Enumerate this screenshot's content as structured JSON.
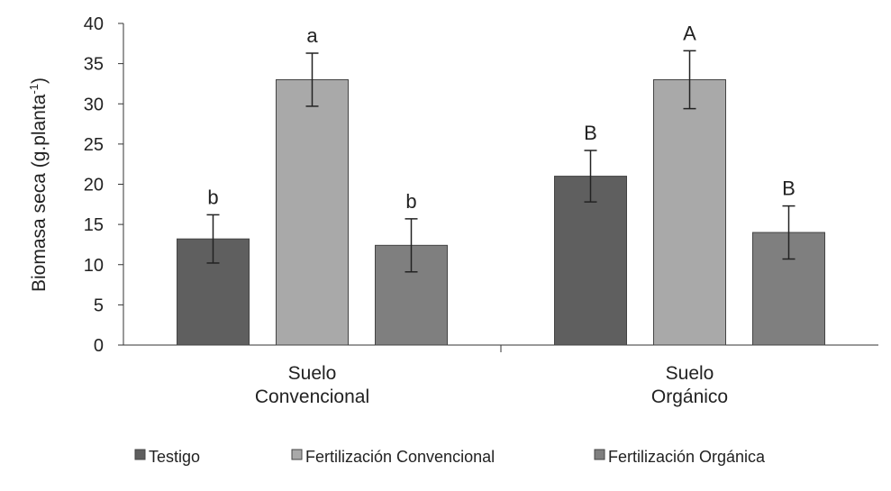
{
  "chart_data": {
    "type": "bar",
    "y_label": [
      "Biomasa seca (g.planta",
      "-1",
      ")"
    ],
    "categories": [
      "Suelo\nConvencional",
      "Suelo\nOrgánico"
    ],
    "series": [
      {
        "name": "Testigo",
        "color": "#5f5f5f",
        "values": [
          13.2,
          21
        ],
        "errors": [
          3.0,
          3.2
        ],
        "labels": [
          "b",
          "B"
        ]
      },
      {
        "name": "Fertilización Convencional",
        "color": "#a9a9a9",
        "values": [
          33,
          33
        ],
        "errors": [
          3.3,
          3.6
        ],
        "labels": [
          "a",
          "A"
        ]
      },
      {
        "name": "Fertilización Orgánica",
        "color": "#7f7f7f",
        "values": [
          12.4,
          14
        ],
        "errors": [
          3.3,
          3.3
        ],
        "labels": [
          "b",
          "B"
        ]
      }
    ],
    "ylim": [
      0,
      40
    ],
    "yticks": [
      0,
      5,
      10,
      15,
      20,
      25,
      30,
      35,
      40
    ],
    "grid": false,
    "legend": "bottom"
  }
}
